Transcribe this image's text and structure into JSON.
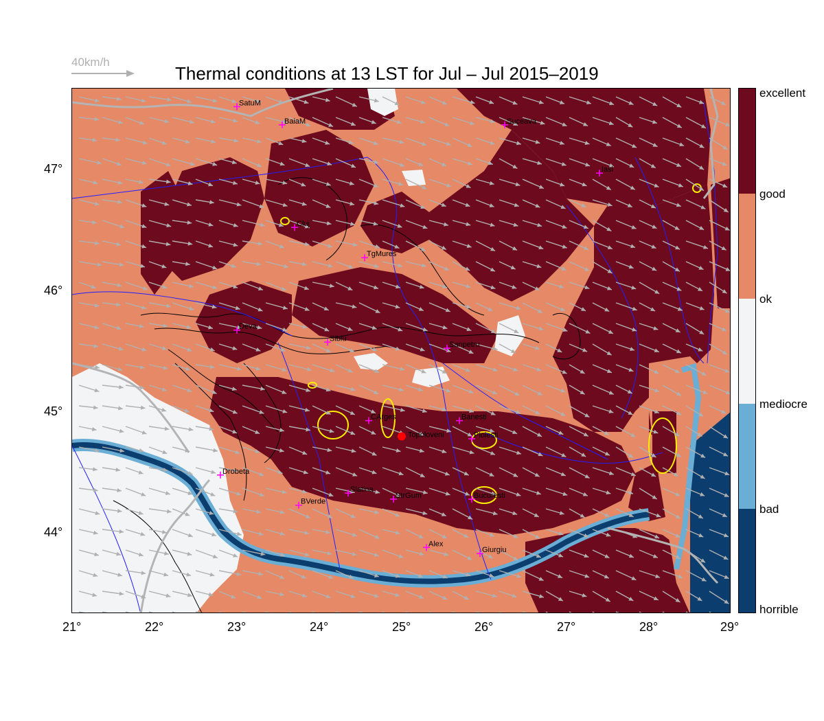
{
  "title": "Thermal conditions at 13 LST for Jul – Jul  2015–2019",
  "wind_scale": {
    "label": "40km/h",
    "color": "#b0b0b0"
  },
  "colors": {
    "excellent": "#6e0a1e",
    "good": "#e58966",
    "ok": "#f3f4f5",
    "mediocre": "#6aaed6",
    "bad": "#0b3d6e",
    "rivers": "#1a1aff",
    "borders": "#b4b4b4",
    "yellow_contour": "#ffee00",
    "cities": "#ff00ff",
    "site": "#ff0000"
  },
  "colorbar": {
    "labels": [
      "excellent",
      "good",
      "ok",
      "mediocre",
      "bad",
      "horrible"
    ]
  },
  "axes": {
    "lat_ticks": [
      "47°",
      "46°",
      "45°",
      "44°"
    ],
    "lon_ticks": [
      "21°",
      "22°",
      "23°",
      "24°",
      "25°",
      "26°",
      "27°",
      "28°",
      "29°"
    ],
    "lon_range": [
      21,
      29
    ],
    "lat_range": [
      43.35,
      47.7
    ]
  },
  "cities": [
    {
      "name": "SatuM",
      "lon": 23.0,
      "lat": 47.55
    },
    {
      "name": "BaiaM",
      "lon": 23.55,
      "lat": 47.4
    },
    {
      "name": "Suceava",
      "lon": 26.25,
      "lat": 47.4
    },
    {
      "name": "Iasi",
      "lon": 27.4,
      "lat": 47.0
    },
    {
      "name": "Cluj",
      "lon": 23.7,
      "lat": 46.55
    },
    {
      "name": "TgMures",
      "lon": 24.55,
      "lat": 46.3
    },
    {
      "name": "Deva",
      "lon": 23.0,
      "lat": 45.7
    },
    {
      "name": "Sibiu",
      "lon": 24.1,
      "lat": 45.6
    },
    {
      "name": "Sanpetru",
      "lon": 25.55,
      "lat": 45.55
    },
    {
      "name": "CArges",
      "lon": 24.6,
      "lat": 44.95
    },
    {
      "name": "Banesti",
      "lon": 25.7,
      "lat": 44.95
    },
    {
      "name": "Ploiesti",
      "lon": 25.85,
      "lat": 44.8
    },
    {
      "name": "Drobeta",
      "lon": 22.8,
      "lat": 44.5
    },
    {
      "name": "Slatina",
      "lon": 24.35,
      "lat": 44.35
    },
    {
      "name": "StrGum",
      "lon": 24.9,
      "lat": 44.3
    },
    {
      "name": "Bucuresti",
      "lon": 25.85,
      "lat": 44.3
    },
    {
      "name": "BVerde",
      "lon": 23.75,
      "lat": 44.25
    },
    {
      "name": "Alex",
      "lon": 25.3,
      "lat": 43.9
    },
    {
      "name": "Giurgiu",
      "lon": 25.95,
      "lat": 43.85
    }
  ],
  "site": {
    "name": "Topoloveni",
    "lon": 25.0,
    "lat": 44.82
  }
}
